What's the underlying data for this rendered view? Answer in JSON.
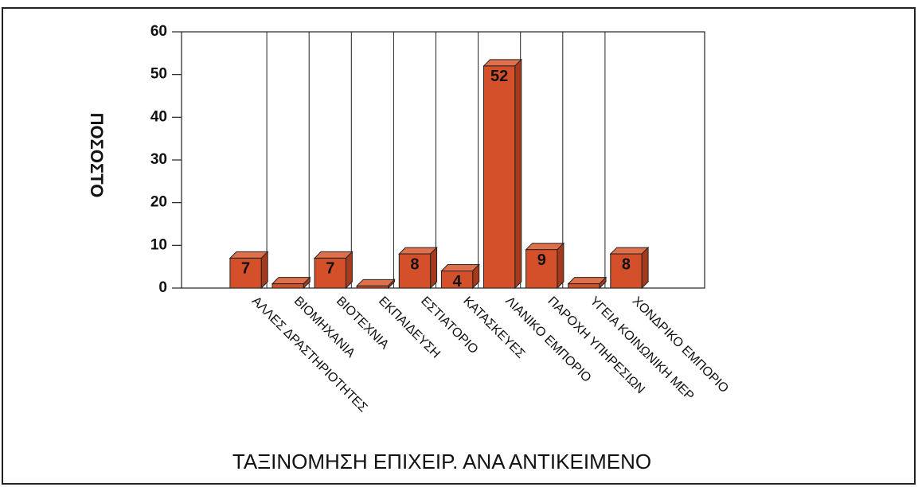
{
  "chart_data": {
    "type": "bar3d",
    "title": "ΤΑΞΙΝΟΜΗΣΗ ΕΠΙΧΕΙΡ. ΑΝΑ ΑΝΤΙΚΕΙΜΕΝΟ",
    "y_label": "ΠΟΣΟΣΤΟ",
    "categories": [
      "ΑΛΛΕΣ ΔΡΑΣΤΗΡΙΟΤΗΤΕΣ",
      "ΒΙΟΜΗΧΑΝΙΑ",
      "ΒΙΟΤΕΧΝΙΑ",
      "ΕΚΠΑΙΔΕΥΣΗ",
      "ΕΣΤΙΑΤΟΡΙΟ",
      "ΚΑΤΑΣΚΕΥΕΣ",
      "ΛΙΑΝΙΚΟ ΕΜΠΟΡΙΟ",
      "ΠΑΡΟΧΗ ΥΠΗΡΕΣΙΩΝ",
      "ΥΓΕΙΑ ΚΟΙΝΩΝΙΚΗ ΜΕΡ",
      "ΧΟΝΔΡΙΚΟ ΕΜΠΟΡΙΟ"
    ],
    "values": [
      7,
      1,
      7,
      0.5,
      8,
      4,
      52,
      9,
      1,
      8
    ],
    "value_labels": [
      "7",
      null,
      "7",
      null,
      "8",
      "4",
      "52",
      "9",
      null,
      "8"
    ],
    "color": "#d4502a",
    "ylim": [
      0,
      60
    ],
    "yticks": [
      0,
      10,
      20,
      30,
      40,
      50,
      60
    ],
    "grid": false
  }
}
